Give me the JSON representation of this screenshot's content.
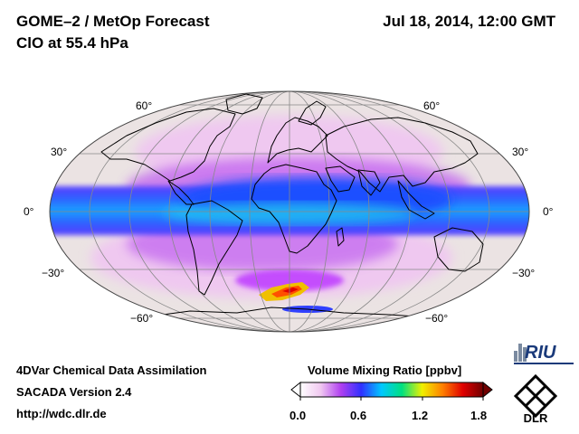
{
  "header": {
    "title": "GOME–2 / MetOp Forecast",
    "subtitle": "ClO at 55.4 hPa",
    "datetime": "Jul 18, 2014, 12:00 GMT"
  },
  "map": {
    "projection": "Mollweide",
    "lat_labels": {
      "n60_left": "60°",
      "n30_left": "30°",
      "eq_left": "0°",
      "s30_left": "−30°",
      "s60_left": "−60°",
      "n60_right": "60°",
      "n30_right": "30°",
      "eq_right": "0°",
      "s30_right": "−30°",
      "s60_right": "−60°"
    },
    "colors": {
      "ocean_bg": "#ebe3e3",
      "grid": "#888888",
      "coast": "#000000"
    }
  },
  "colorbar": {
    "title": "Volume Mixing Ratio [ppbv]",
    "ticks": [
      "0.0",
      "0.6",
      "1.2",
      "1.8"
    ],
    "range": [
      0.0,
      1.8
    ],
    "colors": [
      "#ffffff",
      "#f0c8f0",
      "#b040f0",
      "#3030ff",
      "#00c8ff",
      "#00e080",
      "#f0f000",
      "#ff8000",
      "#e00000",
      "#700000"
    ]
  },
  "footer": {
    "line1": "4DVar Chemical Data Assimilation",
    "line2": "SACADA Version 2.4",
    "line3": "http://wdc.dlr.de"
  },
  "logos": {
    "riu": "RIU",
    "dlr": "DLR"
  }
}
